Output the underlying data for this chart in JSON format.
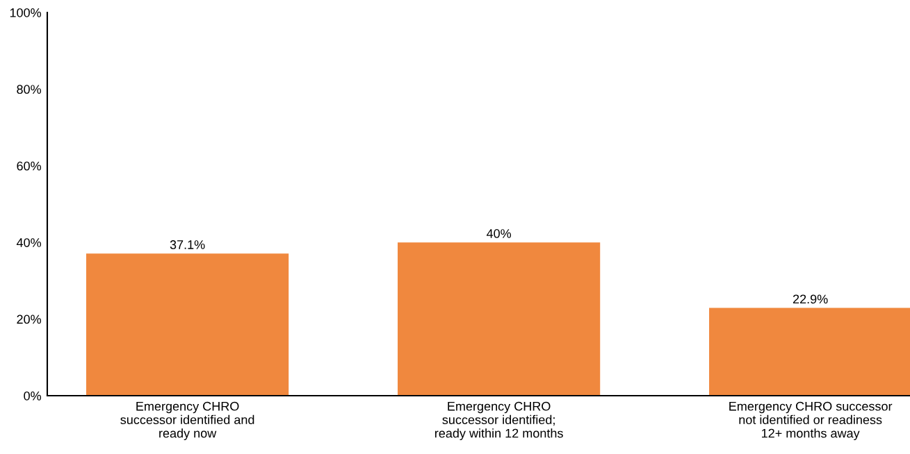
{
  "chart_data": {
    "type": "bar",
    "categories": [
      "Emergency CHRO\nsuccessor identified and\nready now",
      "Emergency CHRO\nsuccessor identified;\nready within 12 months",
      "Emergency CHRO successor\nnot identified or readiness\n12+ months away"
    ],
    "values": [
      37.1,
      40,
      22.9
    ],
    "value_labels": [
      "37.1%",
      "40%",
      "22.9%"
    ],
    "color": "#f0883e",
    "ylim": [
      0,
      100
    ],
    "yticks": [
      {
        "value": 0,
        "label": "0%"
      },
      {
        "value": 20,
        "label": "20%"
      },
      {
        "value": 40,
        "label": "40%"
      },
      {
        "value": 60,
        "label": "60%"
      },
      {
        "value": 80,
        "label": "80%"
      },
      {
        "value": 100,
        "label": "100%"
      }
    ],
    "grid": false,
    "legend": false
  }
}
